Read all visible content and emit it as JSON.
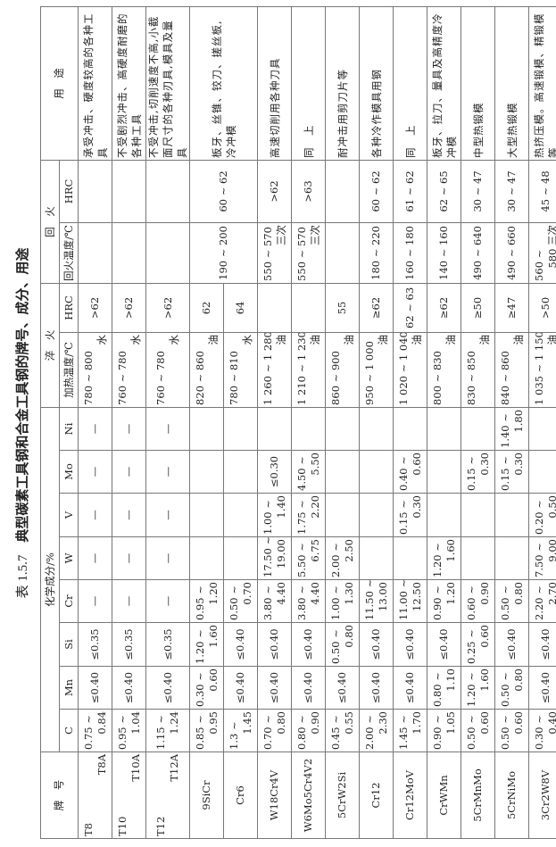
{
  "title": {
    "number": "表 1.5.7",
    "text": "典型碳素工具钢和合金工具钢的牌号、成分、用途"
  },
  "headers": {
    "grade": "牌　号",
    "composition": "化学成分/%",
    "quench": "淬　火",
    "temper": "回　火",
    "usage": "用　途",
    "C": "C",
    "Mn": "Mn",
    "Si": "Si",
    "Cr": "Cr",
    "W": "W",
    "V": "V",
    "Mo": "Mo",
    "Ni": "Ni",
    "q_temp": "加热温度/℃",
    "q_hrc": "HRC",
    "t_temp": "回火温度/℃",
    "t_hrc": "HRC"
  },
  "rows": [
    {
      "grade": [
        "T8",
        "T8A"
      ],
      "C": [
        "0.75 ~",
        "0.84"
      ],
      "Mn": [
        "≤0.40"
      ],
      "Si": [
        "≤0.35"
      ],
      "Cr": [
        "—"
      ],
      "W": [
        "—"
      ],
      "V": [
        "—"
      ],
      "Mo": [
        "—"
      ],
      "Ni": [
        "—"
      ],
      "q_temp": [
        "780 ~ 800",
        "水"
      ],
      "q_hrc": [
        ">62"
      ],
      "t_temp": [],
      "t_hrc": [],
      "usage": "承受冲击、硬度较高的各种工具"
    },
    {
      "grade": [
        "T10",
        "T10A"
      ],
      "C": [
        "0.95 ~",
        "1.04"
      ],
      "Mn": [
        "≤0.40"
      ],
      "Si": [
        "≤0.35"
      ],
      "Cr": [
        "—"
      ],
      "W": [
        "—"
      ],
      "V": [
        "—"
      ],
      "Mo": [
        "—"
      ],
      "Ni": [
        "—"
      ],
      "q_temp": [
        "760 ~ 780",
        "水"
      ],
      "q_hrc": [
        ">62"
      ],
      "t_temp": [],
      "t_hrc": [],
      "usage": "不受剧烈冲击、高硬度耐磨的各种工具"
    },
    {
      "grade": [
        "T12",
        "T12A"
      ],
      "C": [
        "1.15 ~",
        "1.24"
      ],
      "Mn": [
        "≤0.40"
      ],
      "Si": [
        "≤0.35"
      ],
      "Cr": [
        "—"
      ],
      "W": [
        "—"
      ],
      "V": [
        "—"
      ],
      "Mo": [
        "—"
      ],
      "Ni": [
        "—"
      ],
      "q_temp": [
        "760 ~ 780",
        "水"
      ],
      "q_hrc": [
        ">62"
      ],
      "t_temp": [],
      "t_hrc": [],
      "usage": "不受冲击,切削速度不高,小截面尺寸的各种刃具,模具及量具"
    },
    {
      "grade": [
        "9SiCr"
      ],
      "C": [
        "0.85 ~",
        "0.95"
      ],
      "Mn": [
        "0.30 ~",
        "0.60"
      ],
      "Si": [
        "1.20 ~",
        "1.60"
      ],
      "Cr": [
        "0.95 ~",
        "1.20"
      ],
      "W": [],
      "V": [],
      "Mo": [],
      "Ni": [],
      "q_temp": [
        "820 ~ 860",
        "油"
      ],
      "q_hrc": [
        "62"
      ],
      "t_temp": [
        "190 ~ 200"
      ],
      "t_hrc": [
        "60 ~ 62"
      ],
      "usage": "板牙、丝锥、铰刀、搓丝板,冷冲模",
      "span": 2
    },
    {
      "grade": [
        "Cr6"
      ],
      "C": [
        "1.3 ~",
        "1.45"
      ],
      "Mn": [
        "≤0.40"
      ],
      "Si": [
        "≤0.40"
      ],
      "Cr": [
        "0.50 ~",
        "0.70"
      ],
      "W": [],
      "V": [],
      "Mo": [],
      "Ni": [],
      "q_temp": [
        "780 ~ 810",
        "水"
      ],
      "q_hrc": [
        "64"
      ],
      "merged": true
    },
    {
      "grade": [
        "W18Cr4V"
      ],
      "C": [
        "0.70 ~",
        "0.80"
      ],
      "Mn": [
        "≤0.40"
      ],
      "Si": [
        "≤0.40"
      ],
      "Cr": [
        "3.80 ~",
        "4.40"
      ],
      "W": [
        "17.50 ~",
        "19.00"
      ],
      "V": [
        "1.00 ~",
        "1.40"
      ],
      "Mo": [
        "≤0.30"
      ],
      "Ni": [],
      "q_temp": [
        "1 260 ~ 1 280",
        "油"
      ],
      "q_hrc": [],
      "t_temp": [
        "550 ~ 570",
        "三次"
      ],
      "t_hrc": [
        ">62"
      ],
      "usage": "高速切削用各种刀具"
    },
    {
      "grade": [
        "W6Mo5Cr4V2"
      ],
      "C": [
        "0.80 ~",
        "0.90"
      ],
      "Mn": [
        "≤0.40"
      ],
      "Si": [
        "≤0.40"
      ],
      "Cr": [
        "3.80 ~",
        "4.40"
      ],
      "W": [
        "5.50 ~",
        "6.75"
      ],
      "V": [
        "1.75 ~",
        "2.20"
      ],
      "Mo": [
        "4.50 ~",
        "5.50"
      ],
      "Ni": [],
      "q_temp": [
        "1 210 ~ 1 230",
        "油"
      ],
      "q_hrc": [],
      "t_temp": [
        "550 ~ 570",
        "三次"
      ],
      "t_hrc": [
        ">63"
      ],
      "usage": "同　上"
    },
    {
      "grade": [
        "5CrW2Si"
      ],
      "C": [
        "0.45 ~",
        "0.55"
      ],
      "Mn": [
        "≤0.40"
      ],
      "Si": [
        "0.50 ~",
        "0.80"
      ],
      "Cr": [
        "1.00 ~",
        "1.30"
      ],
      "W": [
        "2.00 ~",
        "2.50"
      ],
      "V": [],
      "Mo": [],
      "Ni": [],
      "q_temp": [
        "860 ~ 900",
        "油"
      ],
      "q_hrc": [
        "55"
      ],
      "t_temp": [],
      "t_hrc": [],
      "usage": "耐冲击用剪刀片等"
    },
    {
      "grade": [
        "Cr12"
      ],
      "C": [
        "2.00 ~",
        "2.30"
      ],
      "Mn": [
        "≤0.40"
      ],
      "Si": [
        "≤0.40"
      ],
      "Cr": [
        "11.50 ~",
        "13.00"
      ],
      "W": [],
      "V": [],
      "Mo": [],
      "Ni": [],
      "q_temp": [
        "950 ~ 1 000",
        "油"
      ],
      "q_hrc": [
        "≥62"
      ],
      "t_temp": [
        "180 ~ 220"
      ],
      "t_hrc": [
        "60 ~ 62"
      ],
      "usage": "各种冷作模具用钢"
    },
    {
      "grade": [
        "Cr12MoV"
      ],
      "C": [
        "1.45 ~",
        "1.70"
      ],
      "Mn": [
        "≤0.40"
      ],
      "Si": [
        "≤0.40"
      ],
      "Cr": [
        "11.00 ~",
        "12.50"
      ],
      "W": [],
      "V": [
        "0.15 ~",
        "0.30"
      ],
      "Mo": [
        "0.40 ~",
        "0.60"
      ],
      "Ni": [],
      "q_temp": [
        "1 020 ~ 1 040",
        "油"
      ],
      "q_hrc": [
        "62 ~ 63"
      ],
      "t_temp": [
        "160 ~ 180"
      ],
      "t_hrc": [
        "61 ~ 62"
      ],
      "usage": "同　上"
    },
    {
      "grade": [
        "CrWMn"
      ],
      "C": [
        "0.90 ~",
        "1.05"
      ],
      "Mn": [
        "0.80 ~",
        "1.10"
      ],
      "Si": [
        "≤0.40"
      ],
      "Cr": [
        "0.90 ~",
        "1.20"
      ],
      "W": [
        "1.20 ~",
        "1.60"
      ],
      "V": [],
      "Mo": [],
      "Ni": [],
      "q_temp": [
        "800 ~ 830",
        "油"
      ],
      "q_hrc": [
        "≥62"
      ],
      "t_temp": [
        "140 ~ 160"
      ],
      "t_hrc": [
        "62 ~ 65"
      ],
      "usage": "板牙、拉刀、量具及高精度冷冲模"
    },
    {
      "grade": [
        "5CrMnMo"
      ],
      "C": [
        "0.50 ~",
        "0.60"
      ],
      "Mn": [
        "1.20 ~",
        "1.60"
      ],
      "Si": [
        "0.25 ~",
        "0.60"
      ],
      "Cr": [
        "0.60 ~",
        "0.90"
      ],
      "W": [],
      "V": [],
      "Mo": [
        "0.15 ~",
        "0.30"
      ],
      "Ni": [],
      "q_temp": [
        "830 ~ 850",
        "油"
      ],
      "q_hrc": [
        "≥50"
      ],
      "t_temp": [
        "490 ~ 640"
      ],
      "t_hrc": [
        "30 ~ 47"
      ],
      "usage": "中型热锻模"
    },
    {
      "grade": [
        "5CrNiMo"
      ],
      "C": [
        "0.50 ~",
        "0.60"
      ],
      "Mn": [
        "0.50 ~",
        "0.80"
      ],
      "Si": [
        "≤0.40"
      ],
      "Cr": [
        "0.50 ~",
        "0.80"
      ],
      "W": [],
      "V": [],
      "Mo": [
        "0.15 ~",
        "0.30"
      ],
      "Ni": [
        "1.40 ~",
        "1.80"
      ],
      "q_temp": [
        "840 ~ 860",
        "油"
      ],
      "q_hrc": [
        "≥47"
      ],
      "t_temp": [
        "490 ~ 660"
      ],
      "t_hrc": [
        "30 ~ 47"
      ],
      "usage": "大型热锻模"
    },
    {
      "grade": [
        "3Cr2W8V"
      ],
      "C": [
        "0.30 ~",
        "0.40"
      ],
      "Mn": [
        "≤0.40"
      ],
      "Si": [
        "≤0.40"
      ],
      "Cr": [
        "2.20 ~",
        "2.70"
      ],
      "W": [
        "7.50 ~",
        "9.00"
      ],
      "V": [
        "0.20 ~",
        "0.50"
      ],
      "Mo": [],
      "Ni": [],
      "q_temp": [
        "1 035 ~ 1 150",
        "油"
      ],
      "q_hrc": [
        ">50"
      ],
      "t_temp": [
        "560 ~",
        "580 三次"
      ],
      "t_hrc": [
        "45 ~ 48"
      ],
      "usage": "热挤压模。高速锻模、精锻模等"
    }
  ]
}
